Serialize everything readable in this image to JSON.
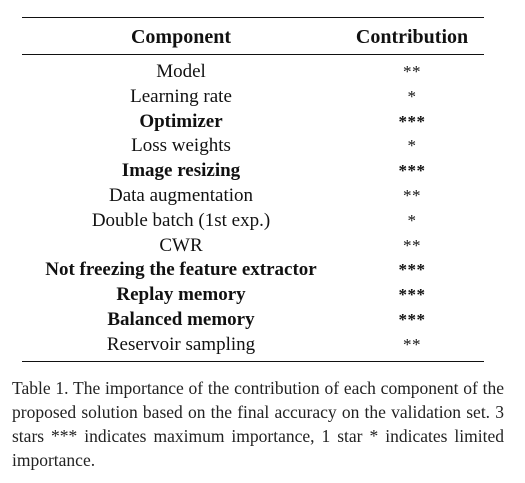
{
  "table": {
    "headers": {
      "component": "Component",
      "contribution": "Contribution"
    },
    "rows": [
      {
        "component": "Model",
        "contribution": "**",
        "bold": false
      },
      {
        "component": "Learning rate",
        "contribution": "*",
        "bold": false
      },
      {
        "component": "Optimizer",
        "contribution": "***",
        "bold": true
      },
      {
        "component": "Loss weights",
        "contribution": "*",
        "bold": false
      },
      {
        "component": "Image resizing",
        "contribution": "***",
        "bold": true
      },
      {
        "component": "Data augmentation",
        "contribution": "**",
        "bold": false
      },
      {
        "component": "Double batch (1st exp.)",
        "contribution": "*",
        "bold": false
      },
      {
        "component": "CWR",
        "contribution": "**",
        "bold": false
      },
      {
        "component": "Not freezing the feature extractor",
        "contribution": "***",
        "bold": true
      },
      {
        "component": "Replay memory",
        "contribution": "***",
        "bold": true
      },
      {
        "component": "Balanced memory",
        "contribution": "***",
        "bold": true
      },
      {
        "component": "Reservoir sampling",
        "contribution": "**",
        "bold": false
      }
    ]
  },
  "caption": "Table 1. The importance of the contribution of each component of the proposed solution based on the final accuracy on the validation set. 3 stars *** indicates maximum importance, 1 star * indicates limited importance."
}
